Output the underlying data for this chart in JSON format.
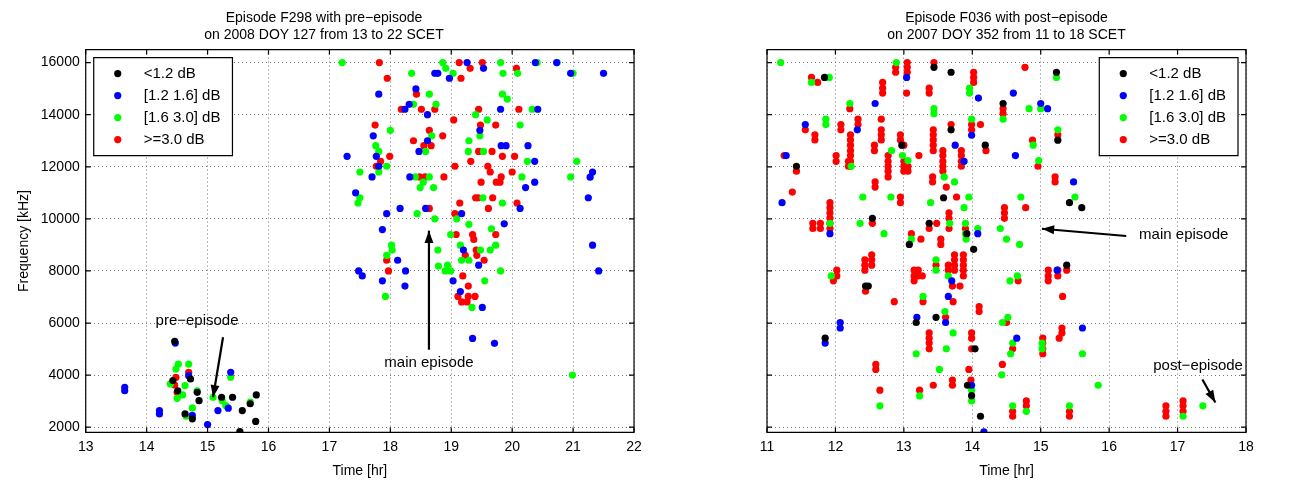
{
  "chart_data": [
    {
      "type": "scatter",
      "title": "Episode F298 with pre−episode\non 2008 DOY 127 from 13 to 22 SCET",
      "xlabel": "Time [hr]",
      "ylabel": "Frequency [kHz]",
      "xlim": [
        13,
        22
      ],
      "ylim": [
        1800,
        16500
      ],
      "xticks": [
        13,
        14,
        15,
        16,
        17,
        18,
        19,
        20,
        21,
        22
      ],
      "yticks": [
        2000,
        4000,
        6000,
        8000,
        10000,
        12000,
        14000,
        16000
      ],
      "grid": true,
      "legend": "top left",
      "marker": "circle",
      "annotations": [
        {
          "text": "pre−episode",
          "x": 15.09,
          "y": 3150
        },
        "main episode"
      ],
      "series": [
        {
          "name": "<1.2 dB",
          "color": "#000000",
          "x": [
            14.46,
            14.43,
            14.72,
            14.83,
            14.86,
            15.23,
            15.41,
            15.57,
            15.7,
            15.8,
            15.79,
            15.53,
            14.63,
            14.75,
            14.51
          ],
          "values": [
            5300,
            3790,
            3850,
            3340,
            3020,
            3150,
            3150,
            2640,
            2900,
            3240,
            2220,
            1830,
            2510,
            2320,
            3400
          ]
        },
        {
          "name": "[1.2 1.6] dB",
          "color": "#0000ff",
          "x": [
            13.64,
            13.64,
            14.21,
            14.21,
            14.47,
            14.69,
            14.75,
            15.0,
            15.17,
            15.34,
            15.38,
            19.26,
            20.38,
            20.73,
            19.53,
            18.73,
            18.78,
            18.97,
            20.96,
            21.5,
            18.42,
            17.81,
            18.31,
            18.24,
            19.81,
            20.42,
            18.61,
            19.47,
            17.72,
            18.61,
            19.82,
            19.9,
            20.26,
            18.47,
            17.29,
            17.77,
            17.81,
            20.37,
            17.7,
            18.32,
            21.32,
            21.28,
            20.37,
            20.22,
            17.43,
            21.25,
            20.13,
            18.16,
            18.58,
            17.94,
            19.17,
            19.87,
            17.87,
            19.2,
            18.12,
            18.25,
            19.45,
            17.48,
            17.54,
            21.32,
            21.42,
            17.87,
            18.24,
            19.03,
            19.15,
            19.51,
            19.35,
            19.71
          ],
          "values": [
            3530,
            3400,
            2640,
            2510,
            5230,
            3980,
            2450,
            2100,
            2640,
            2730,
            4110,
            16000,
            16000,
            16000,
            15780,
            15590,
            15590,
            15400,
            15590,
            15590,
            14990,
            14790,
            14400,
            14210,
            14210,
            14210,
            14000,
            13400,
            13190,
            13000,
            12810,
            12810,
            12810,
            12590,
            12400,
            12400,
            12020,
            12210,
            11610,
            11610,
            11800,
            11600,
            11410,
            11200,
            11000,
            10810,
            10400,
            10400,
            10400,
            10200,
            10200,
            9810,
            9590,
            8800,
            8410,
            8000,
            8220,
            8000,
            7810,
            8990,
            8000,
            7620,
            7420,
            7620,
            7210,
            6600,
            5410,
            5220
          ]
        },
        {
          "name": "[1.6 3.0] dB",
          "color": "#00ff00",
          "x": [
            14.48,
            14.52,
            14.39,
            14.63,
            14.59,
            14.5,
            14.69,
            14.83,
            14.75,
            14.65,
            15.09,
            15.24,
            15.3,
            15.38,
            15.7,
            17.21,
            18.86,
            19.81,
            20.41,
            20.74,
            18.35,
            18.91,
            19.03,
            19.85,
            20.09,
            21.0,
            18.64,
            19.84,
            19.92,
            18.38,
            18.75,
            20.33,
            19.4,
            19.59,
            20.13,
            18.0,
            18.68,
            19.47,
            19.29,
            17.76,
            17.81,
            18.58,
            19.28,
            19.53,
            17.94,
            20.25,
            21.06,
            17.5,
            17.81,
            18.41,
            18.64,
            18.54,
            18.71,
            18.49,
            20.16,
            20.96,
            19.52,
            19.84,
            17.47,
            17.5,
            18.44,
            18.73,
            19.09,
            19.29,
            18.99,
            19.66,
            19.73,
            18.02,
            18.03,
            17.94,
            18.78,
            19.15,
            19.17,
            19.29,
            19.48,
            19.64,
            18.79,
            18.94,
            18.9,
            18.99,
            19.81,
            19.55,
            17.92,
            19.34,
            20.99
          ],
          "values": [
            4230,
            4420,
            3660,
            3600,
            3240,
            3110,
            4420,
            3400,
            2740,
            2420,
            3150,
            3020,
            2830,
            3920,
            2960,
            16000,
            16000,
            16000,
            16000,
            16000,
            15590,
            15780,
            15590,
            15590,
            15590,
            15590,
            14790,
            14790,
            14600,
            14400,
            14400,
            14210,
            14000,
            13800,
            13600,
            13400,
            13190,
            13190,
            13000,
            12810,
            12590,
            12590,
            12590,
            12590,
            12020,
            12210,
            12210,
            11800,
            11800,
            11610,
            11610,
            11410,
            11200,
            11200,
            11610,
            11610,
            10810,
            10610,
            10610,
            10810,
            10200,
            10000,
            10000,
            9790,
            9400,
            9620,
            8990,
            8990,
            8800,
            8600,
            8800,
            8990,
            8410,
            8410,
            8800,
            8800,
            8190,
            8220,
            8000,
            8000,
            8000,
            7620,
            7020,
            6600,
            4000
          ]
        },
        {
          "name": ">=3.0 dB",
          "color": "#ff0000",
          "x": [
            14.46,
            14.48,
            14.5,
            14.69,
            17.82,
            19.13,
            19.51,
            20.07,
            19.31,
            19.16,
            17.95,
            18.43,
            18.18,
            18.51,
            18.73,
            19.45,
            20.11,
            19.04,
            19.73,
            17.75,
            19.48,
            18.64,
            18.86,
            18.38,
            18.55,
            18.67,
            19.45,
            19.67,
            17.99,
            19.84,
            20.04,
            17.84,
            17.77,
            19.32,
            19.06,
            19.6,
            19.64,
            20.0,
            18.48,
            18.57,
            18.88,
            19.82,
            19.49,
            19.74,
            19.8,
            19.4,
            19.44,
            19.68,
            19.14,
            19.61,
            20.08,
            18.64,
            19.06,
            19.08,
            19.73,
            19.35,
            19.37,
            19.41,
            19.23,
            19.42,
            17.94,
            19.54,
            17.97,
            19.19,
            19.28,
            19.11,
            19.17,
            19.26,
            19.28,
            19.39
          ],
          "values": [
            3620,
            3910,
            3340,
            4110,
            16000,
            16000,
            16000,
            15780,
            15780,
            15400,
            15400,
            14790,
            14210,
            14210,
            14210,
            14210,
            14210,
            13800,
            13600,
            13600,
            13600,
            13400,
            13190,
            13000,
            12810,
            12810,
            12590,
            12590,
            12400,
            12400,
            12400,
            12210,
            12020,
            12210,
            12020,
            12020,
            11800,
            11800,
            11610,
            11610,
            11610,
            11610,
            11410,
            11410,
            11410,
            10810,
            10810,
            10810,
            10610,
            10400,
            10610,
            10400,
            10200,
            9400,
            9400,
            9400,
            9210,
            8800,
            8600,
            8600,
            8410,
            8410,
            8000,
            7810,
            7420,
            7020,
            6810,
            6810,
            7020,
            7020
          ]
        }
      ]
    },
    {
      "type": "scatter",
      "title": "Episode F036 with post−episode\non 2007 DOY 352 from 11 to 18 SCET",
      "xlabel": "Time [hr]",
      "xlim": [
        11,
        18
      ],
      "ylim": [
        1800,
        16500
      ],
      "xticks": [
        11,
        12,
        13,
        14,
        15,
        16,
        17,
        18
      ],
      "yticks": [
        2000,
        4000,
        6000,
        8000,
        10000,
        12000,
        14000,
        16000
      ],
      "grid": true,
      "legend": "top right",
      "marker": "circle",
      "tick_labels": "x",
      "annotations": [
        "main episode",
        "post−episode"
      ],
      "series": [
        {
          "name": "<1.2 dB",
          "color": "#000000",
          "x": [
            11.84,
            11.43,
            13.44,
            13.69,
            12.97,
            13.69,
            14.19,
            13.58,
            12.54,
            13.37,
            13.08,
            13.92,
            14.02,
            12.44,
            12.48,
            13.18,
            13.47,
            11.85,
            14.04,
            13.93,
            13.99,
            14.12,
            15.23,
            14.45,
            15.25,
            15.42,
            15.6,
            15.38
          ],
          "values": [
            15430,
            12020,
            15820,
            15630,
            12830,
            13420,
            12830,
            10810,
            10020,
            9830,
            9020,
            9430,
            8830,
            7420,
            7420,
            6020,
            6220,
            5420,
            5010,
            3610,
            3210,
            2420,
            15630,
            14430,
            13020,
            10620,
            10430,
            8220
          ]
        },
        {
          "name": "[1.2 1.6] dB",
          "color": "#0000ff",
          "x": [
            11.28,
            11.22,
            11.56,
            12.32,
            12.58,
            13.04,
            13.75,
            13.88,
            13.99,
            14.09,
            11.92,
            14.08,
            12.07,
            12.07,
            11.85,
            13.7,
            13.65,
            13.19,
            13.61,
            13.99,
            14.17,
            14.6,
            15.0,
            15.1,
            14.63,
            15.48,
            15.24,
            14.65,
            15.61
          ],
          "values": [
            12430,
            10620,
            13620,
            13420,
            14430,
            15430,
            12830,
            12210,
            13210,
            14640,
            9430,
            9430,
            6020,
            5810,
            5230,
            7620,
            7020,
            6220,
            6020,
            3610,
            1820,
            14830,
            14430,
            14230,
            12430,
            11420,
            8030,
            5420,
            5810
          ]
        },
        {
          "name": "[1.6 3.0] dB",
          "color": "#00ff00",
          "x": [
            11.2,
            12.89,
            11.65,
            11.91,
            12.21,
            11.86,
            11.86,
            12.23,
            12.82,
            12.98,
            13.06,
            12.4,
            12.81,
            13.39,
            13.95,
            13.96,
            13.96,
            13.99,
            13.74,
            13.59,
            13.88,
            11.92,
            12.36,
            12.71,
            13.11,
            13.67,
            13.9,
            13.9,
            13.91,
            14.08,
            14.41,
            14.5,
            13.44,
            13.44,
            11.94,
            13.47,
            13.47,
            13.65,
            13.28,
            13.6,
            14.44,
            13.72,
            13.62,
            13.18,
            13.52,
            14.43,
            12.65,
            13.23,
            13.99,
            13.99,
            15.23,
            14.83,
            15.0,
            14.45,
            15.25,
            14.89,
            14.97,
            14.71,
            15.5,
            14.69,
            14.66,
            14.55,
            14.52,
            14.59,
            14.56,
            15.02,
            15.02,
            15.61,
            15.84,
            14.59,
            14.79,
            15.42,
            17.08,
            17.37
          ],
          "values": [
            16000,
            16000,
            15240,
            15430,
            14430,
            13830,
            13620,
            12020,
            12620,
            12430,
            12240,
            10840,
            10840,
            10620,
            10840,
            15020,
            14830,
            13830,
            11420,
            11610,
            10430,
            9830,
            9830,
            9430,
            9220,
            9830,
            9830,
            9430,
            9220,
            9630,
            9630,
            9220,
            14230,
            14040,
            7810,
            8430,
            8030,
            7810,
            7020,
            6440,
            6020,
            5620,
            5010,
            4820,
            4220,
            4010,
            2820,
            3200,
            3420,
            3010,
            15430,
            14230,
            14230,
            13830,
            13420,
            12830,
            12240,
            10840,
            10840,
            9020,
            7810,
            7620,
            6220,
            5230,
            4820,
            5230,
            5010,
            4820,
            3610,
            2820,
            2610,
            2820,
            2420,
            2820
          ]
        },
        {
          "name": ">=3.0 dB",
          "color": "#ff0000",
          "x": [
            11.65,
            11.74,
            11.56,
            11.25,
            11.43,
            11.37,
            11.7,
            11.7,
            12.08,
            12.08,
            12.21,
            12.33,
            12.33,
            12.22,
            12.22,
            12.22,
            12.22,
            12.22,
            12.22,
            12.22,
            12.19,
            12.19,
            12.01,
            12.01,
            11.92,
            11.92,
            11.92,
            11.92,
            11.92,
            11.92,
            11.67,
            11.67,
            11.78,
            11.78,
            12.67,
            12.67,
            12.67,
            12.67,
            12.69,
            12.69,
            12.69,
            12.57,
            12.57,
            12.77,
            12.77,
            12.77,
            12.77,
            12.77,
            12.58,
            12.58,
            12.95,
            12.95,
            12.88,
            12.88,
            13.05,
            13.05,
            13.05,
            13.04,
            13.0,
            13.0,
            13.0,
            13.0,
            13.06,
            13.06,
            12.95,
            12.95,
            12.54,
            13.22,
            13.43,
            13.43,
            13.43,
            13.43,
            13.43,
            13.37,
            13.37,
            13.44,
            13.57,
            13.57,
            13.57,
            13.57,
            13.57,
            13.42,
            13.42,
            13.62,
            13.77,
            13.69,
            13.84,
            13.84,
            13.84,
            13.84,
            14.02,
            14.02,
            14.02,
            13.99,
            13.99,
            14.12,
            14.2,
            13.37,
            13.48,
            13.66,
            13.66,
            13.66,
            13.9,
            13.11,
            13.25,
            13.54,
            13.54,
            13.74,
            13.74,
            13.74,
            13.74,
            13.87,
            13.87,
            13.87,
            13.87,
            13.87,
            13.71,
            13.82,
            13.47,
            13.65,
            13.65,
            13.15,
            13.15,
            13.15,
            13.21,
            13.21,
            13.27,
            12.43,
            12.43,
            12.43,
            12.53,
            12.53,
            12.53,
            12.44,
            12.02,
            12.02,
            11.97,
            12.86,
            13.28,
            13.72,
            14.1,
            14.1,
            13.61,
            13.37,
            13.37,
            13.37,
            13.37,
            13.99,
            13.99,
            13.99,
            12.59,
            12.59,
            13.95,
            12.65,
            13.23,
            13.43,
            13.71,
            13.71,
            13.98,
            14.44,
            14.5,
            14.77,
            14.45,
            14.45,
            14.88,
            14.96,
            15.21,
            15.21,
            15.25,
            14.47,
            14.47,
            14.47,
            14.78,
            14.67,
            15.11,
            15.11,
            15.11,
            15.25,
            15.25,
            15.38,
            15.32,
            15.31,
            15.31,
            15.27,
            15.03,
            15.03,
            15.03,
            15.03,
            14.59,
            14.79,
            14.79,
            14.59,
            14.59,
            15.42,
            15.42,
            16.83,
            16.83,
            16.83,
            17.08,
            17.08,
            17.08
          ],
          "values": [
            15430,
            15240,
            13420,
            12430,
            11830,
            11030,
            13230,
            13030,
            13620,
            13420,
            14230,
            13830,
            13620,
            13230,
            13030,
            12830,
            12620,
            12430,
            12210,
            12020,
            12210,
            12020,
            12430,
            12210,
            10620,
            10430,
            10230,
            10020,
            9830,
            9630,
            9830,
            9630,
            9830,
            9630,
            13830,
            13420,
            13230,
            13030,
            15240,
            15020,
            14830,
            12830,
            12620,
            12430,
            12210,
            12020,
            11830,
            11610,
            11420,
            11220,
            13230,
            13030,
            15820,
            15630,
            16000,
            15820,
            15630,
            14830,
            12830,
            12210,
            12020,
            11830,
            12020,
            11830,
            10840,
            10620,
            9830,
            12430,
            13420,
            13230,
            13030,
            12830,
            12620,
            15020,
            14830,
            16000,
            12620,
            12430,
            12210,
            12020,
            11830,
            11610,
            11420,
            11220,
            10840,
            13620,
            12620,
            12430,
            12210,
            12020,
            15630,
            15430,
            15240,
            13620,
            13420,
            13620,
            12620,
            9630,
            9830,
            10230,
            10020,
            9630,
            9630,
            9430,
            9220,
            9220,
            9020,
            8620,
            8430,
            8220,
            8030,
            8620,
            8430,
            8220,
            8030,
            7810,
            7420,
            7420,
            8220,
            8220,
            8030,
            8030,
            7810,
            7620,
            8030,
            7810,
            7810,
            8430,
            8220,
            8030,
            8620,
            8430,
            8220,
            7220,
            8030,
            7810,
            7620,
            6820,
            6820,
            6820,
            6630,
            6440,
            6220,
            5620,
            5420,
            5230,
            5010,
            5620,
            5420,
            5010,
            4410,
            4220,
            4220,
            3420,
            3420,
            3610,
            3810,
            3610,
            3810,
            4410,
            6020,
            15820,
            14230,
            14040,
            13020,
            12020,
            11610,
            11420,
            13230,
            10430,
            10230,
            10020,
            10430,
            7620,
            8030,
            7810,
            7620,
            8030,
            7810,
            8030,
            7020,
            5810,
            5620,
            5420,
            5420,
            5230,
            5010,
            4820,
            5010,
            3010,
            2820,
            2610,
            2420,
            2610,
            2420,
            2820,
            2610,
            2420,
            3010,
            2820,
            2610
          ]
        }
      ]
    }
  ]
}
